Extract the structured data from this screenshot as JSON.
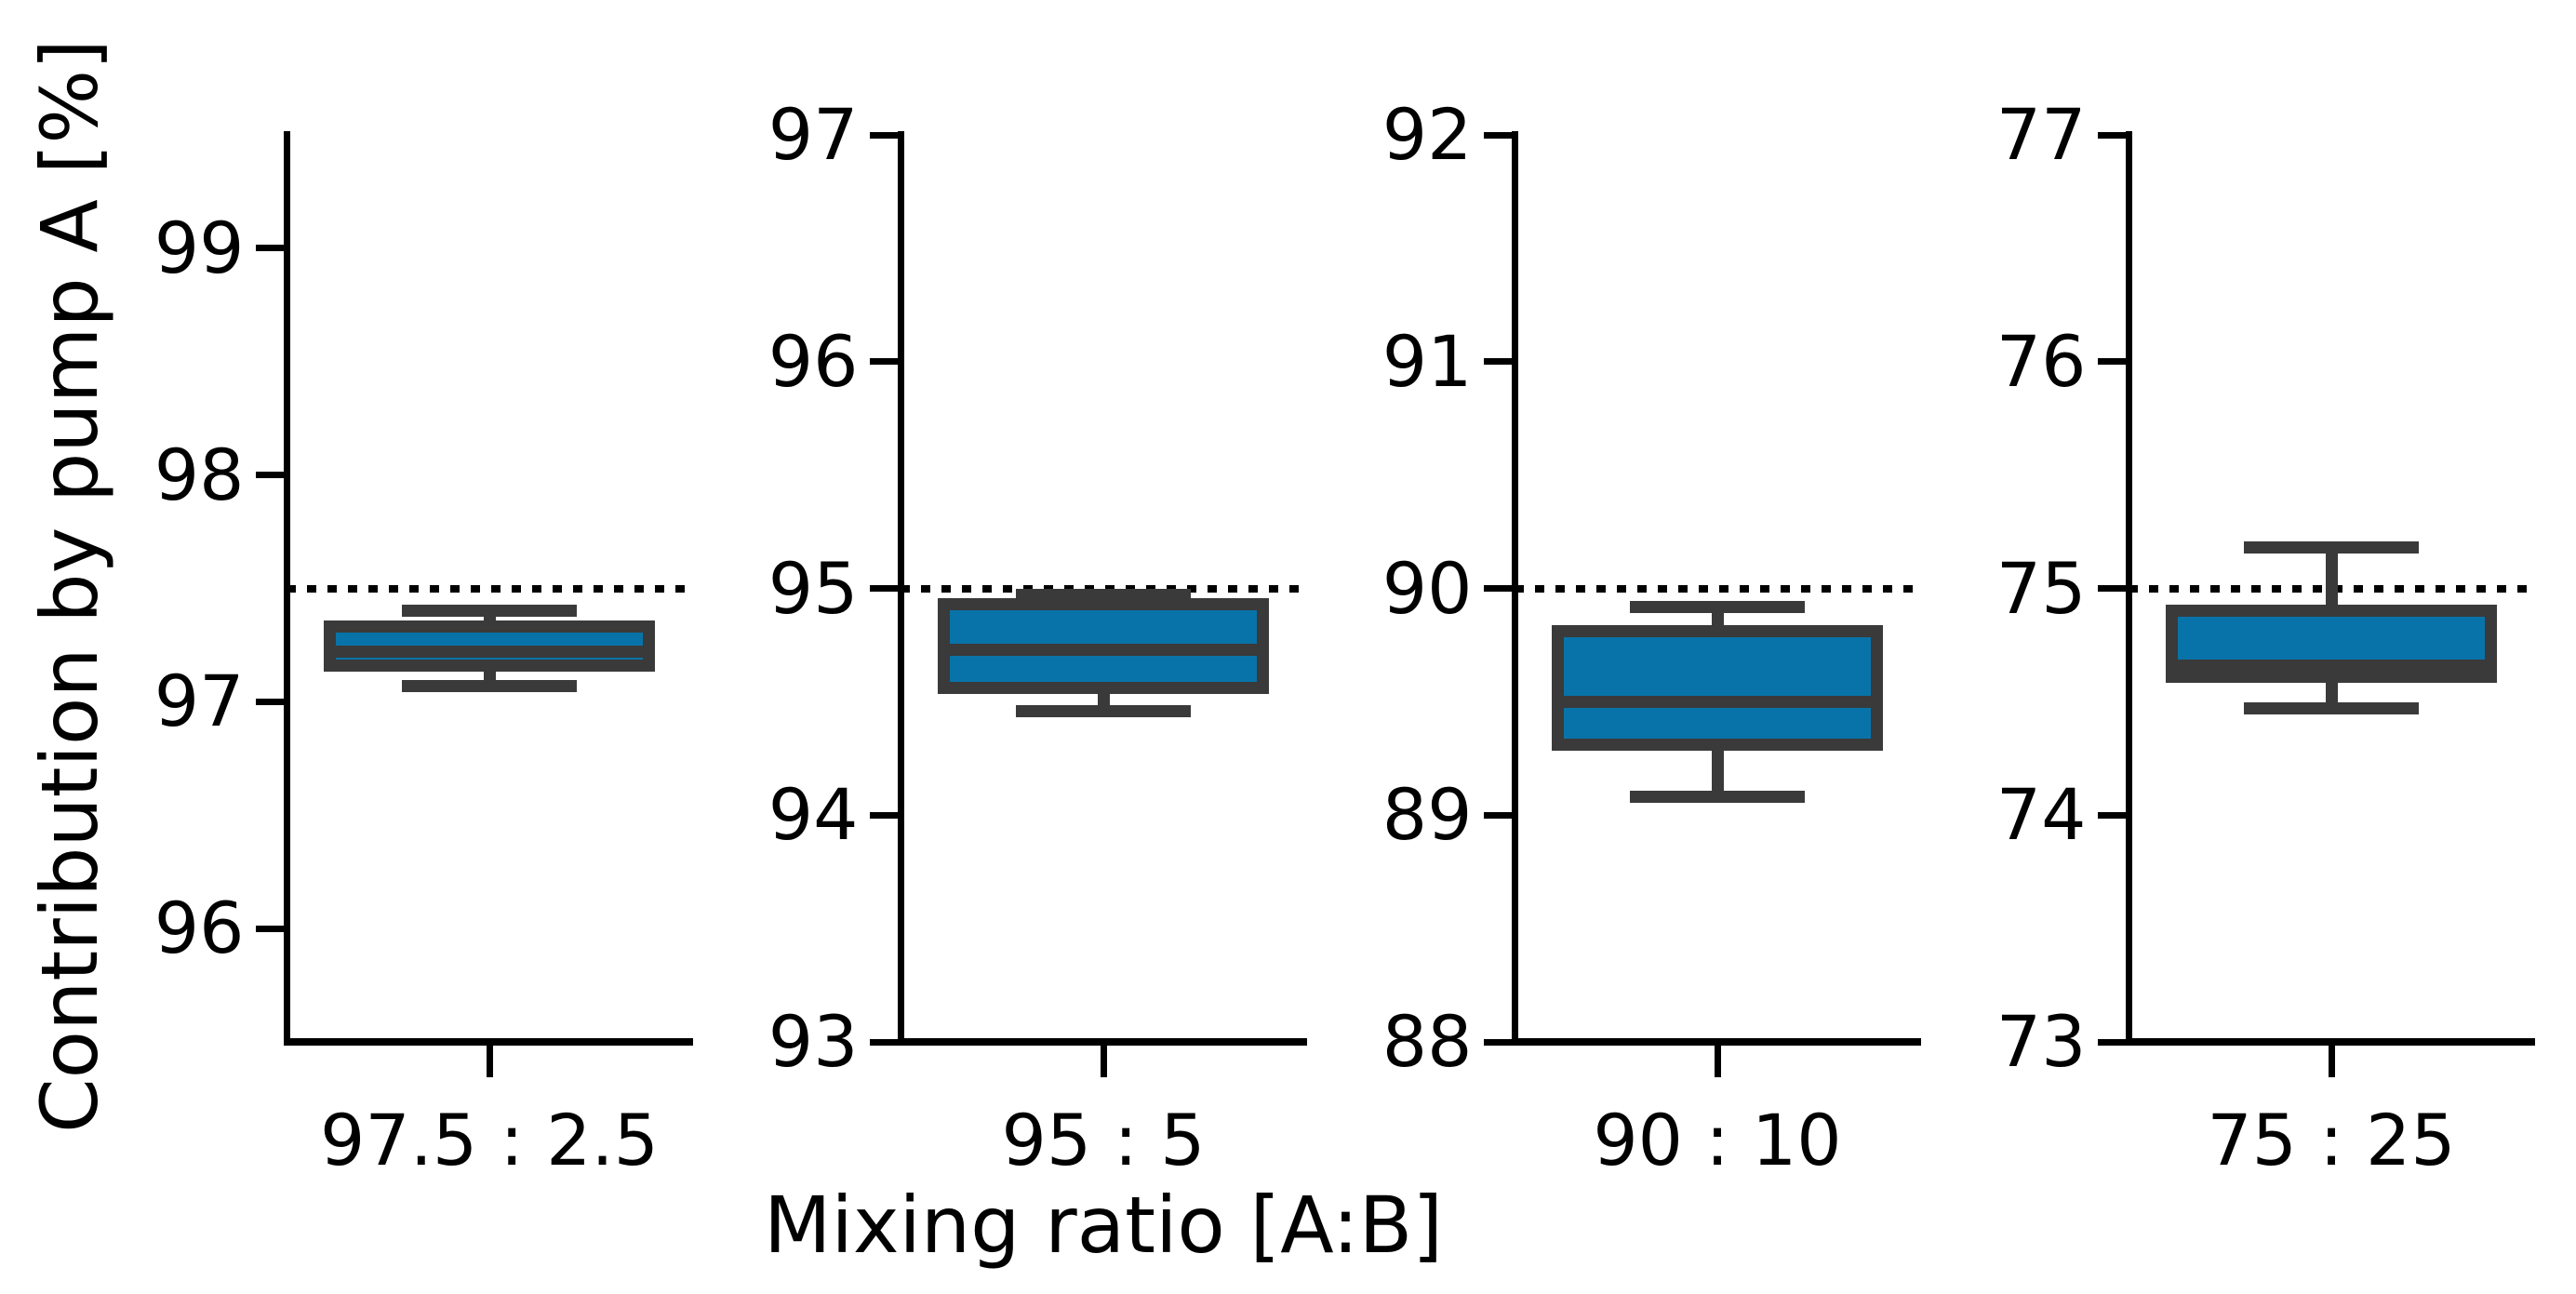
{
  "chart_data": {
    "type": "box",
    "title": "",
    "xlabel": "Mixing ratio [A:B]",
    "ylabel": "Contribution by pump A [%]",
    "grid": false,
    "legend": "none",
    "target_line_style": "dotted",
    "colors": {
      "box_fill": "#0873a8",
      "box_edge": "#3a3a3a",
      "axis": "#000000",
      "target_line": "#000000",
      "background": "#ffffff"
    },
    "panels": [
      {
        "category": "97.5 : 2.5",
        "target": 97.5,
        "ylim": [
          95.5,
          99.5
        ],
        "yticks": [
          96,
          97,
          98,
          99
        ],
        "box": {
          "whisker_low": 97.07,
          "q1": 97.16,
          "median": 97.22,
          "q3": 97.33,
          "whisker_high": 97.4
        }
      },
      {
        "category": "95 : 5",
        "target": 95.0,
        "ylim": [
          93.0,
          97.0
        ],
        "yticks": [
          93,
          94,
          95,
          96,
          97
        ],
        "box": {
          "whisker_low": 94.46,
          "q1": 94.56,
          "median": 94.73,
          "q3": 94.93,
          "whisker_high": 94.97
        }
      },
      {
        "category": "90 : 10",
        "target": 90.0,
        "ylim": [
          88.0,
          92.0
        ],
        "yticks": [
          88,
          89,
          90,
          91,
          92
        ],
        "box": {
          "whisker_low": 89.08,
          "q1": 89.31,
          "median": 89.5,
          "q3": 89.81,
          "whisker_high": 89.92
        }
      },
      {
        "category": "75 : 25",
        "target": 75.0,
        "ylim": [
          73.0,
          77.0
        ],
        "yticks": [
          73,
          74,
          75,
          76,
          77
        ],
        "box": {
          "whisker_low": 74.47,
          "q1": 74.61,
          "median": 74.66,
          "q3": 74.9,
          "whisker_high": 75.18
        }
      }
    ]
  }
}
